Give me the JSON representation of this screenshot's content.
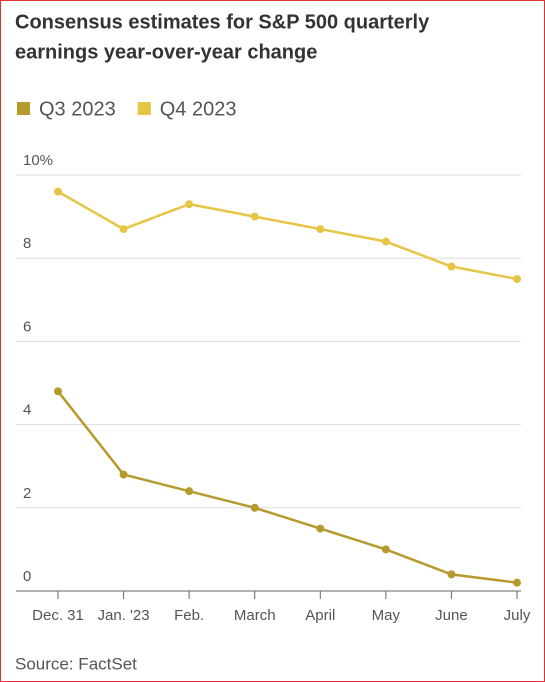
{
  "chart_data": {
    "type": "line",
    "title_lines": [
      "Consensus estimates for S&P 500 quarterly",
      "earnings year-over-year change"
    ],
    "categories": [
      "Dec. 31",
      "Jan. '23",
      "Feb.",
      "March",
      "April",
      "May",
      "June",
      "July"
    ],
    "series": [
      {
        "name": "Q3 2023",
        "color": "#b59b2e",
        "values": [
          4.8,
          2.8,
          2.4,
          2.0,
          1.5,
          1.0,
          0.4,
          0.2
        ]
      },
      {
        "name": "Q4 2023",
        "color": "#e6c444",
        "values": [
          9.6,
          8.7,
          9.3,
          9.0,
          8.7,
          8.4,
          7.8,
          7.5
        ]
      }
    ],
    "ylim": [
      0,
      10
    ],
    "yticks": [
      0,
      2,
      4,
      6,
      8,
      {
        "value": 10,
        "label": "10%"
      }
    ],
    "grid": true,
    "source": "Source: FactSet"
  }
}
